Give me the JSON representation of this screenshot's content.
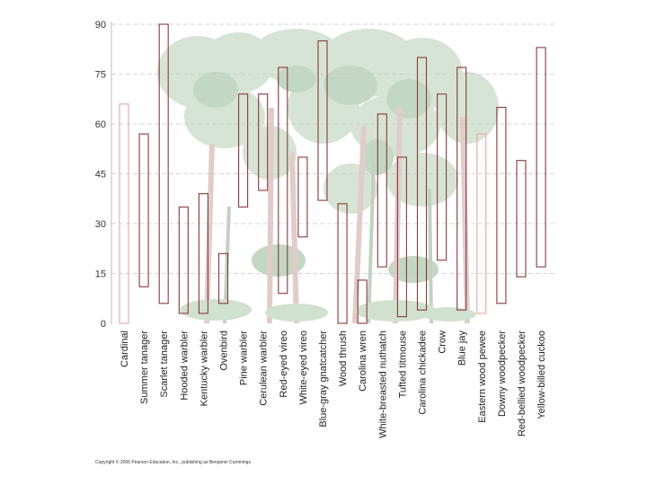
{
  "chart_data": {
    "type": "floating-bar",
    "title": "",
    "xlabel": "",
    "ylabel": "",
    "ylim": [
      0,
      90
    ],
    "yticks": [
      0,
      15,
      30,
      45,
      60,
      75,
      90
    ],
    "grid": "dashed horizontal",
    "categories": [
      "Cardinal",
      "Summer tanager",
      "Scarlet tanager",
      "Hooded warbler",
      "Kentucky warbler",
      "Ovenbird",
      "Pine warbler",
      "Cerulean warbler",
      "Red-eyed vireo",
      "White-eyed vireo",
      "Blue-gray gnatcatcher",
      "Wood thrush",
      "Carolina wren",
      "White-breasted nuthatch",
      "Tufted titmouse",
      "Carolina chickadee",
      "Crow",
      "Blue jay",
      "Eastern wood pewee",
      "Downy woodpecker",
      "Red-bellied woodpecker",
      "Yellow-billed cuckoo"
    ],
    "ranges": [
      {
        "low": 0,
        "high": 66
      },
      {
        "low": 11,
        "high": 57
      },
      {
        "low": 6,
        "high": 90
      },
      {
        "low": 3,
        "high": 35
      },
      {
        "low": 3,
        "high": 39
      },
      {
        "low": 6,
        "high": 21
      },
      {
        "low": 35,
        "high": 69
      },
      {
        "low": 40,
        "high": 69
      },
      {
        "low": 9,
        "high": 77
      },
      {
        "low": 26,
        "high": 50
      },
      {
        "low": 37,
        "high": 85
      },
      {
        "low": 0,
        "high": 36
      },
      {
        "low": 0,
        "high": 13
      },
      {
        "low": 17,
        "high": 63
      },
      {
        "low": 2,
        "high": 50
      },
      {
        "low": 4,
        "high": 80
      },
      {
        "low": 19,
        "high": 69
      },
      {
        "low": 4,
        "high": 77
      },
      {
        "low": 3,
        "high": 57
      },
      {
        "low": 6,
        "high": 65
      },
      {
        "low": 14,
        "high": 49
      },
      {
        "low": 17,
        "high": 83
      }
    ],
    "bar_outline_color": "#8a3a38",
    "light_outline_color": "#e3a8a3",
    "background_art": "forest"
  },
  "footer": {
    "copyright": "Copyright © 2006 Pearson Education, Inc., publishing as Benjamin Cummings"
  }
}
